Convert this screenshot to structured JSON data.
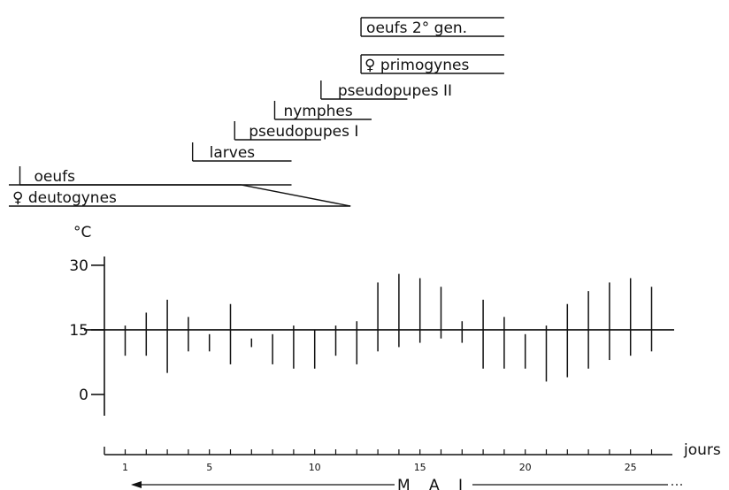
{
  "chart_data": {
    "type": "range-bar",
    "title": "",
    "xlabel": "jours",
    "ylabel": "°C",
    "month_label": "M A I",
    "ylim": [
      -5,
      33
    ],
    "yticks": [
      0,
      15,
      30
    ],
    "xlim": [
      0,
      27
    ],
    "xticks": [
      1,
      5,
      10,
      15,
      20,
      25
    ],
    "reference_line": 15,
    "grid": false,
    "series": [
      {
        "values": [
          {
            "day": 1,
            "min": 9,
            "max": 16
          },
          {
            "day": 2,
            "min": 9,
            "max": 19
          },
          {
            "day": 3,
            "min": 5,
            "max": 22
          },
          {
            "day": 4,
            "min": 10,
            "max": 18
          },
          {
            "day": 5,
            "min": 10,
            "max": 14
          },
          {
            "day": 6,
            "min": 7,
            "max": 21
          },
          {
            "day": 7,
            "min": 11,
            "max": 13
          },
          {
            "day": 8,
            "min": 7,
            "max": 14
          },
          {
            "day": 9,
            "min": 6,
            "max": 16
          },
          {
            "day": 10,
            "min": 6,
            "max": 15
          },
          {
            "day": 11,
            "min": 9,
            "max": 16
          },
          {
            "day": 12,
            "min": 7,
            "max": 17
          },
          {
            "day": 13,
            "min": 10,
            "max": 26
          },
          {
            "day": 14,
            "min": 11,
            "max": 28
          },
          {
            "day": 15,
            "min": 12,
            "max": 27
          },
          {
            "day": 16,
            "min": 13,
            "max": 25
          },
          {
            "day": 17,
            "min": 12,
            "max": 17
          },
          {
            "day": 18,
            "min": 6,
            "max": 22
          },
          {
            "day": 19,
            "min": 6,
            "max": 18
          },
          {
            "day": 20,
            "min": 6,
            "max": 14
          },
          {
            "day": 21,
            "min": 3,
            "max": 16
          },
          {
            "day": 22,
            "min": 4,
            "max": 21
          },
          {
            "day": 23,
            "min": 6,
            "max": 24
          },
          {
            "day": 24,
            "min": 8,
            "max": 26
          },
          {
            "day": 25,
            "min": 9,
            "max": 27
          },
          {
            "day": 26,
            "min": 10,
            "max": 25
          }
        ]
      }
    ],
    "stages": [
      {
        "label": "oeufs 2° gen.",
        "start": 12.2,
        "end": 19.0
      },
      {
        "label": "♀ primogynes",
        "start": 12.2,
        "end": 19.0
      },
      {
        "label": "pseudopupes II",
        "start": 10.3,
        "end": 14.4
      },
      {
        "label": "nymphes",
        "start": 8.1,
        "end": 12.7
      },
      {
        "label": "pseudopupes I",
        "start": 6.2,
        "end": 10.3
      },
      {
        "label": "larves",
        "start": 4.2,
        "end": 8.9
      },
      {
        "label": "oeufs",
        "start": -4.0,
        "end": 8.9
      },
      {
        "label": "♀ deutogynes",
        "start": -4.0,
        "end": 6.5,
        "taper_end": 11.7
      }
    ]
  }
}
